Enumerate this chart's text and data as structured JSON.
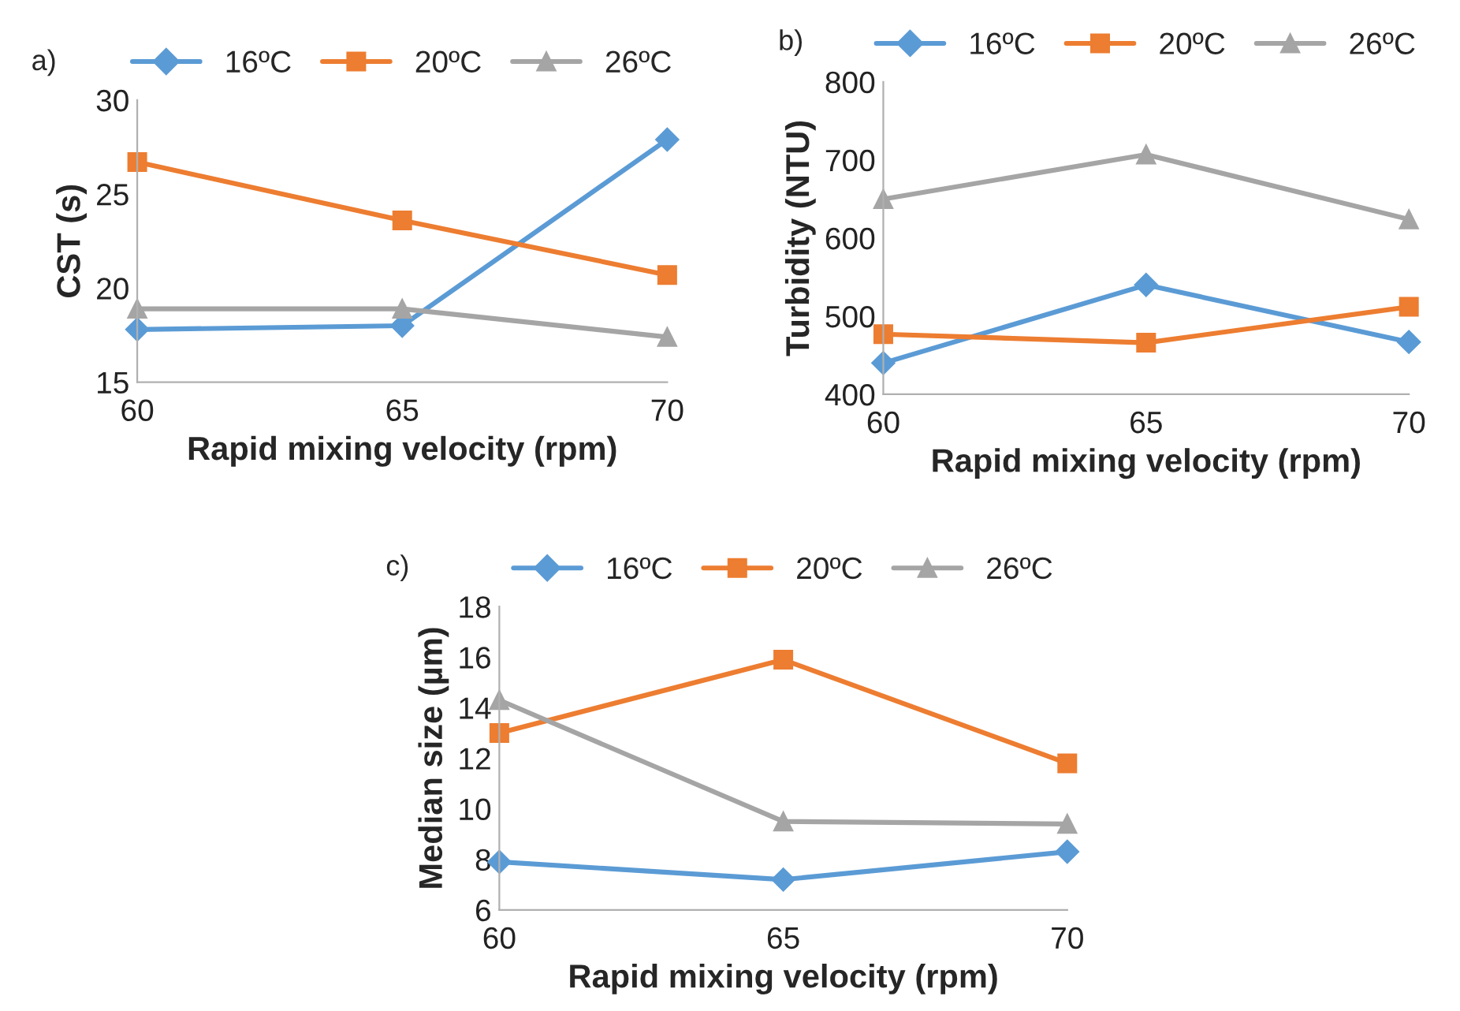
{
  "chart_data": [
    {
      "type": "line",
      "title": "a)",
      "xlabel": "Rapid mixing velocity (rpm)",
      "ylabel": "CST (s)",
      "x": [
        60,
        65,
        70
      ],
      "xlim": [
        60,
        70
      ],
      "xticks": [
        60,
        65,
        70
      ],
      "ylim": [
        15,
        30
      ],
      "yticks": [
        15,
        20,
        25,
        30
      ],
      "grid": false,
      "legend": "top",
      "line_style": "solid",
      "series": [
        {
          "name": "16ºC",
          "color": "#5b9bd5",
          "marker": "diamond",
          "values": [
            17.8,
            18.0,
            27.9
          ]
        },
        {
          "name": "20ºC",
          "color": "#ed7d31",
          "marker": "square",
          "values": [
            26.7,
            23.6,
            20.7
          ]
        },
        {
          "name": "26ºC",
          "color": "#a5a5a5",
          "marker": "triangle",
          "values": [
            18.9,
            18.9,
            17.4
          ]
        }
      ]
    },
    {
      "type": "line",
      "title": "b)",
      "xlabel": "Rapid mixing velocity (rpm)",
      "ylabel": "Turbidity (NTU)",
      "x": [
        60,
        65,
        70
      ],
      "xlim": [
        60,
        70
      ],
      "xticks": [
        60,
        65,
        70
      ],
      "ylim": [
        400,
        800
      ],
      "yticks": [
        400,
        500,
        600,
        700,
        800
      ],
      "grid": false,
      "legend": "top",
      "line_style": "solid",
      "series": [
        {
          "name": "16ºC",
          "color": "#5b9bd5",
          "marker": "diamond",
          "values": [
            440,
            540,
            467
          ]
        },
        {
          "name": "20ºC",
          "color": "#ed7d31",
          "marker": "square",
          "values": [
            477,
            466,
            512
          ]
        },
        {
          "name": "26ºC",
          "color": "#a5a5a5",
          "marker": "triangle",
          "values": [
            650,
            707,
            624
          ]
        }
      ]
    },
    {
      "type": "line",
      "title": "c)",
      "xlabel": "Rapid mixing velocity (rpm)",
      "ylabel": "Median size (µm)",
      "x": [
        60,
        65,
        70
      ],
      "xlim": [
        60,
        70
      ],
      "xticks": [
        60,
        65,
        70
      ],
      "ylim": [
        6,
        18
      ],
      "yticks": [
        6,
        8,
        10,
        12,
        14,
        16,
        18
      ],
      "grid": false,
      "legend": "top",
      "line_style": "solid",
      "series": [
        {
          "name": "16ºC",
          "color": "#5b9bd5",
          "marker": "diamond",
          "values": [
            7.9,
            7.2,
            8.3
          ]
        },
        {
          "name": "20ºC",
          "color": "#ed7d31",
          "marker": "square",
          "values": [
            13.0,
            15.9,
            11.8
          ]
        },
        {
          "name": "26ºC",
          "color": "#a5a5a5",
          "marker": "triangle",
          "values": [
            14.3,
            9.5,
            9.4
          ]
        }
      ]
    }
  ]
}
